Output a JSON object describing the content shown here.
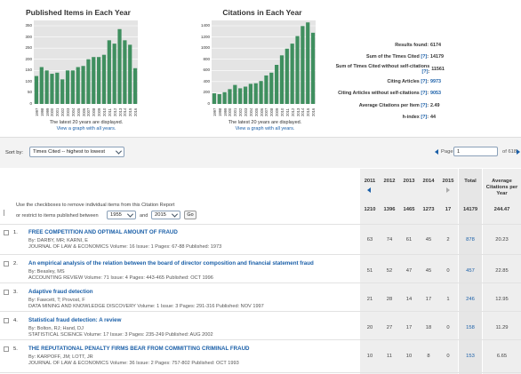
{
  "charts": [
    {
      "title": "Published Items in Each Year",
      "note": "The latest 20 years are displayed.",
      "link": "View a graph with all years.",
      "bar_color": "#3f8f5f",
      "chart_data": {
        "type": "bar",
        "categories": [
          "1997",
          "1998",
          "1999",
          "2000",
          "2001",
          "2002",
          "2003",
          "2004",
          "2005",
          "2006",
          "2007",
          "2008",
          "2009",
          "2010",
          "2011",
          "2012",
          "2013",
          "2014",
          "2015",
          "2016"
        ],
        "values": [
          125,
          165,
          150,
          135,
          140,
          110,
          150,
          150,
          165,
          170,
          200,
          210,
          210,
          220,
          285,
          270,
          335,
          285,
          265,
          160
        ],
        "yticks": [
          0,
          50,
          100,
          150,
          200,
          250,
          300,
          350
        ],
        "ylim": [
          0,
          350
        ]
      }
    },
    {
      "title": "Citations in Each Year",
      "note": "The latest 20 years are displayed.",
      "link": "View a graph with all years.",
      "bar_color": "#3f8f5f",
      "chart_data": {
        "type": "bar",
        "categories": [
          "1997",
          "1998",
          "1999",
          "2000",
          "2001",
          "2002",
          "2003",
          "2004",
          "2005",
          "2006",
          "2007",
          "2008",
          "2009",
          "2010",
          "2011",
          "2012",
          "2013",
          "2014",
          "2015",
          "2016"
        ],
        "values": [
          190,
          175,
          210,
          265,
          340,
          280,
          310,
          360,
          370,
          410,
          510,
          560,
          700,
          870,
          990,
          1080,
          1215,
          1395,
          1460,
          1275
        ],
        "yticks": [
          0,
          200,
          400,
          600,
          800,
          1000,
          1200,
          1400
        ],
        "ylim": [
          0,
          1400
        ]
      }
    }
  ],
  "stats": [
    {
      "label": "Results found:",
      "help": "",
      "value": "6174",
      "link": false
    },
    {
      "label": "Sum of the Times Cited",
      "help": "[?]",
      "value": "14179",
      "link": false
    },
    {
      "label": "Sum of Times Cited without self-citations",
      "help": "[?]",
      "value": "11561",
      "link": false
    },
    {
      "label": "Citing Articles",
      "help": "[?]",
      "value": "9973",
      "link": true
    },
    {
      "label": "Citing Articles without self-citations",
      "help": "[?]",
      "value": "9053",
      "link": true
    },
    {
      "label": "Average Citations per Item",
      "help": "[?]",
      "value": "2.49",
      "link": false
    },
    {
      "label": "h-index",
      "help": "[?]",
      "value": "44",
      "link": false
    }
  ],
  "sort": {
    "label": "Sort by:",
    "value": "Times Cited -- highest to lowest"
  },
  "pager": {
    "label": "Page",
    "value": "1",
    "of_text": "of 618"
  },
  "table": {
    "years": [
      "2011",
      "2012",
      "2013",
      "2014",
      "2015"
    ],
    "total_header": "Total",
    "avg_header": "Average Citations per Year",
    "subtotals": [
      "1210",
      "1396",
      "1465",
      "1273",
      "17",
      "14179",
      "244.47"
    ],
    "instructions_1": "Use the checkboxes to remove individual items from this Citation Report",
    "instructions_2": "or restrict to items published between",
    "from_year": "1955",
    "and_text": "and",
    "to_year": "2015",
    "go_label": "Go"
  },
  "rows": [
    {
      "num": "1.",
      "title": "FREE COMPETITION AND OPTIMAL AMOUNT OF FRAUD",
      "authors": "By: DARBY, MR; KARNI, E",
      "source": "JOURNAL OF LAW & ECONOMICS  Volume: 16   Issue: 1   Pages: 67-88   Published: 1973",
      "values": [
        "63",
        "74",
        "61",
        "45",
        "2"
      ],
      "total": "878",
      "avg": "20.23"
    },
    {
      "num": "2.",
      "title": "An empirical analysis of the relation between the board of director composition and financial statement fraud",
      "authors": "By: Beasley, MS",
      "source": "ACCOUNTING REVIEW  Volume: 71   Issue: 4   Pages: 443-465   Published: OCT 1996",
      "values": [
        "51",
        "52",
        "47",
        "45",
        "0"
      ],
      "total": "457",
      "avg": "22.85"
    },
    {
      "num": "3.",
      "title": "Adaptive fraud detection",
      "authors": "By: Fawcett, T; Provost, F",
      "source": "DATA MINING AND KNOWLEDGE DISCOVERY  Volume: 1   Issue: 3   Pages: 291-316   Published: NOV 1997",
      "values": [
        "21",
        "28",
        "14",
        "17",
        "1"
      ],
      "total": "246",
      "avg": "12.95"
    },
    {
      "num": "4.",
      "title": "Statistical fraud detection: A review",
      "authors": "By: Bolton, RJ; Hand, DJ",
      "source": "STATISTICAL SCIENCE  Volume: 17   Issue: 3   Pages: 235-249   Published: AUG 2002",
      "values": [
        "20",
        "27",
        "17",
        "18",
        "0"
      ],
      "total": "158",
      "avg": "11.29"
    },
    {
      "num": "5.",
      "title": "THE REPUTATIONAL PENALTY FIRMS BEAR FROM COMMITTING CRIMINAL FRAUD",
      "authors": "By: KARPOFF, JM; LOTT, JR",
      "source": "JOURNAL OF LAW & ECONOMICS  Volume: 36   Issue: 2   Pages: 757-802   Published: OCT 1993",
      "values": [
        "10",
        "11",
        "10",
        "8",
        "0"
      ],
      "total": "153",
      "avg": "6.65"
    }
  ]
}
